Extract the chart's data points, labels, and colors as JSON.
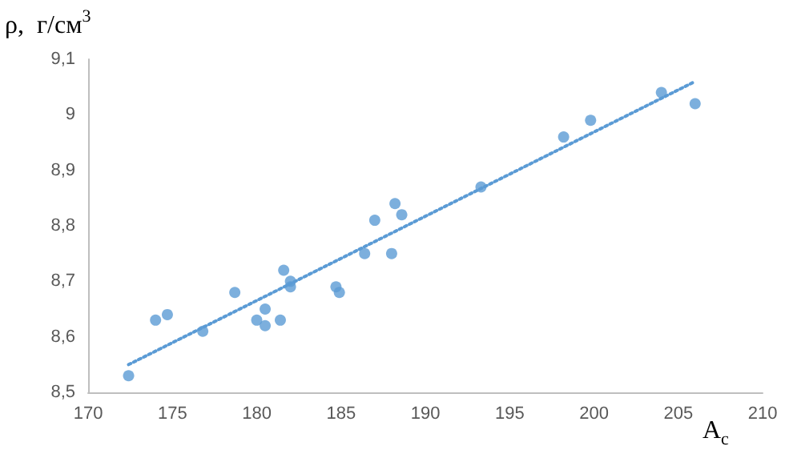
{
  "chart_data": {
    "type": "scatter",
    "xlabel": "A$_{c}$",
    "ylabel": "ρ,  г/см$^{3}$",
    "xlim": [
      170,
      210
    ],
    "xticks": [
      170,
      175,
      180,
      185,
      190,
      195,
      200,
      205,
      210
    ],
    "ylim": [
      8.5,
      9.1
    ],
    "yticks": [
      {
        "value": 8.5,
        "label": "8,5"
      },
      {
        "value": 8.6,
        "label": "8,6"
      },
      {
        "value": 8.7,
        "label": "8,7"
      },
      {
        "value": 8.8,
        "label": "8,8"
      },
      {
        "value": 8.9,
        "label": "8,9"
      },
      {
        "value": 9,
        "label": "9"
      },
      {
        "value": 9.1,
        "label": "9,1"
      }
    ],
    "grid": false,
    "marker": "circle",
    "series": [
      {
        "color": "#5b9bd5",
        "x": [
          172.4,
          174.0,
          174.7,
          176.8,
          178.7,
          180.0,
          180.5,
          180.5,
          181.4,
          181.6,
          182.0,
          182.0,
          184.7,
          184.9,
          186.4,
          187.0,
          188.0,
          188.2,
          188.6,
          193.3,
          198.2,
          199.8,
          204.0,
          206.0
        ],
        "values": [
          8.53,
          8.63,
          8.64,
          8.61,
          8.68,
          8.63,
          8.65,
          8.62,
          8.63,
          8.72,
          8.7,
          8.69,
          8.69,
          8.68,
          8.75,
          8.81,
          8.75,
          8.84,
          8.82,
          8.87,
          8.96,
          8.99,
          9.04,
          9.02
        ]
      },
      {
        "type": "line",
        "color": "#5b9bd5",
        "line_style": "dotted",
        "marker": "none",
        "x": [
          172.4,
          206.0
        ],
        "values": [
          8.55,
          9.06
        ]
      }
    ]
  }
}
